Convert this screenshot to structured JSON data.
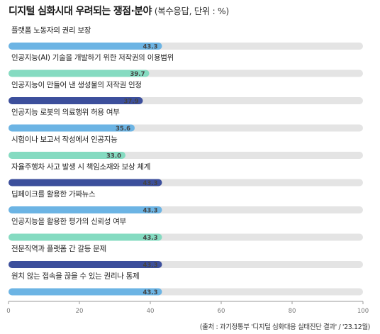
{
  "header": {
    "title": "디지털 심화시대 우려되는 쟁점·분야",
    "subtitle": "(복수응답, 단위 : %)"
  },
  "source": "(출처 : 과기정통부 '디지털 심화대응 실태진단 결과' / '23.12월)",
  "colors": {
    "light_blue": "#6cb4e4",
    "mint": "#85dbc1",
    "navy": "#3c4f9c",
    "track": "#e4e4e4"
  },
  "chart_data": {
    "type": "bar",
    "orientation": "horizontal",
    "title": "디지털 심화시대 우려되는 쟁점·분야",
    "subtitle": "(복수응답, 단위 : %)",
    "xlim": [
      0,
      100
    ],
    "x_ticks": [
      0,
      20,
      40,
      60,
      80,
      100
    ],
    "grid": false,
    "categories": [
      "플랫폼 노동자의 권리 보장",
      "인공지능(AI) 기술을 개발하기 위한 저작권의 이용범위",
      "인공지능이 만들어 낸 생성물의 저작권 인정",
      "인공지능 로봇의 의료행위 허용 여부",
      "시험이나 보고서 작성에서 인공지능",
      "자율주행차 사고 발생 시 책임소재와 보상 체계",
      "딥페이크를 활용한 가짜뉴스",
      "인공지능을 활용한 평가의 신뢰성 여부",
      "전문직역과 플랫폼 간 갈등 문제",
      "원치 않는 접속을 끊을 수 있는 권리나 통제"
    ],
    "values": [
      43.3,
      39.7,
      37.9,
      35.6,
      33.0,
      43.3,
      43.3,
      43.3,
      43.3,
      43.3
    ],
    "value_labels": [
      "43.3",
      "39.7",
      "37.9",
      "35.6",
      "33.0",
      "43.3",
      "43.3",
      "43.3",
      "43.3",
      "43.3"
    ],
    "bar_colors": [
      "light_blue",
      "mint",
      "navy",
      "light_blue",
      "mint",
      "navy",
      "light_blue",
      "mint",
      "navy",
      "light_blue"
    ]
  }
}
